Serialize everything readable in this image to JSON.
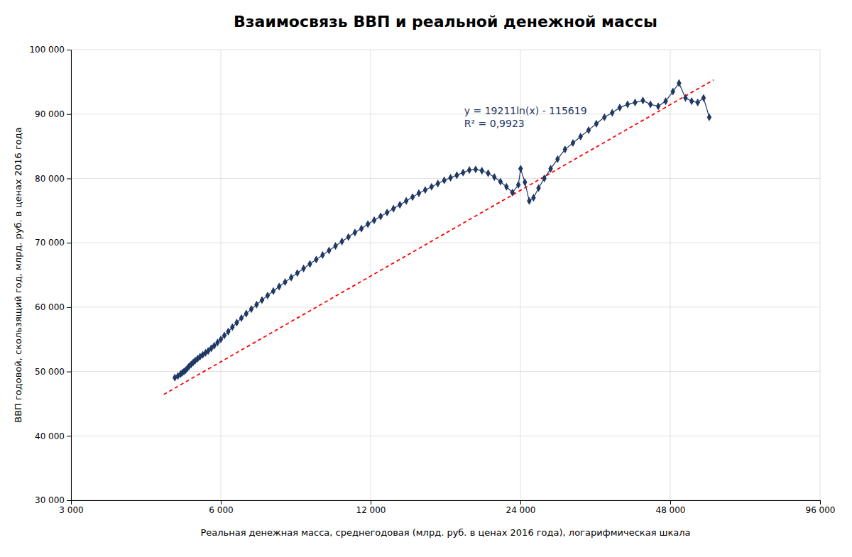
{
  "chart_data": {
    "type": "line",
    "title": "Взаимосвязь ВВП и реальной денежной массы",
    "xlabel": "Реальная денежная масса, среднегодовая (млрд. руб. в ценах 2016 года), логарифмическая шкала",
    "ylabel": "ВВП годовой, скользящий год, млрд. руб. в ценах 2016 года",
    "log": "x",
    "grid": true,
    "xlim": [
      3000,
      96000
    ],
    "ylim": [
      30000,
      100000
    ],
    "xticks": [
      {
        "value": 3000,
        "label": "3 000"
      },
      {
        "value": 6000,
        "label": "6 000"
      },
      {
        "value": 12000,
        "label": "12 000"
      },
      {
        "value": 24000,
        "label": "24 000"
      },
      {
        "value": 48000,
        "label": "48 000"
      },
      {
        "value": 96000,
        "label": "96 000"
      }
    ],
    "yticks": [
      {
        "value": 30000,
        "label": "30 000"
      },
      {
        "value": 40000,
        "label": "40 000"
      },
      {
        "value": 50000,
        "label": "50 000"
      },
      {
        "value": 60000,
        "label": "60 000"
      },
      {
        "value": 70000,
        "label": "70 000"
      },
      {
        "value": 80000,
        "label": "80 000"
      },
      {
        "value": 90000,
        "label": "90 000"
      },
      {
        "value": 100000,
        "label": "100 000"
      }
    ],
    "annotations": [
      {
        "text": "y = 19211ln(x) - 115619\nR² = 0,9923",
        "x": 18500,
        "y": 91500
      }
    ],
    "series": [
      {
        "type": "line",
        "color": "#FF0000",
        "line_style": "dashed",
        "x": [
          4607.5,
          58650
        ],
        "values": [
          46434.25,
          95305.15
        ]
      },
      {
        "type": "line",
        "color": "#1F3864",
        "marker": "diamond",
        "line_style": "solid",
        "x": [
          4850,
          4920,
          4980,
          5020,
          5060,
          5100,
          5140,
          5180,
          5230,
          5280,
          5330,
          5390,
          5450,
          5520,
          5590,
          5660,
          5740,
          5820,
          5910,
          6000,
          6100,
          6210,
          6330,
          6460,
          6600,
          6750,
          6910,
          7080,
          7260,
          7450,
          7650,
          7860,
          8080,
          8310,
          8550,
          8800,
          9060,
          9330,
          9610,
          9900,
          10200,
          10510,
          10830,
          11160,
          11500,
          11850,
          12200,
          12570,
          12950,
          13340,
          13740,
          14150,
          14570,
          15000,
          15450,
          15910,
          16380,
          16870,
          17370,
          17880,
          18410,
          18950,
          19510,
          20080,
          20670,
          21270,
          21880,
          22500,
          23130,
          23770,
          24020,
          24500,
          25000,
          25500,
          26100,
          26800,
          27600,
          28500,
          29500,
          30600,
          31700,
          32900,
          34100,
          35400,
          36700,
          38000,
          39400,
          40800,
          42300,
          43800,
          45400,
          47000,
          48600,
          50000,
          51500,
          53000,
          54500,
          56000,
          57500
        ],
        "values": [
          49050,
          49300,
          49600,
          49800,
          50000,
          50200,
          50500,
          50800,
          51100,
          51400,
          51700,
          52000,
          52300,
          52600,
          52900,
          53200,
          53600,
          54000,
          54500,
          55000,
          55600,
          56200,
          56900,
          57600,
          58300,
          59000,
          59700,
          60400,
          61100,
          61800,
          62500,
          63200,
          63900,
          64600,
          65300,
          66000,
          66700,
          67400,
          68100,
          68800,
          69500,
          70200,
          70900,
          71600,
          72200,
          72900,
          73500,
          74100,
          74700,
          75300,
          75900,
          76500,
          77100,
          77700,
          78200,
          78700,
          79200,
          79700,
          80100,
          80500,
          80900,
          81300,
          81400,
          81200,
          80800,
          80200,
          79500,
          78700,
          77800,
          79000,
          81500,
          79400,
          76500,
          77000,
          78500,
          80000,
          81500,
          83000,
          84500,
          85500,
          86500,
          87500,
          88500,
          89500,
          90200,
          91000,
          91500,
          91800,
          92100,
          91500,
          91200,
          92000,
          93500,
          94800,
          92500,
          92000,
          91800,
          92500,
          89500
        ]
      }
    ]
  }
}
